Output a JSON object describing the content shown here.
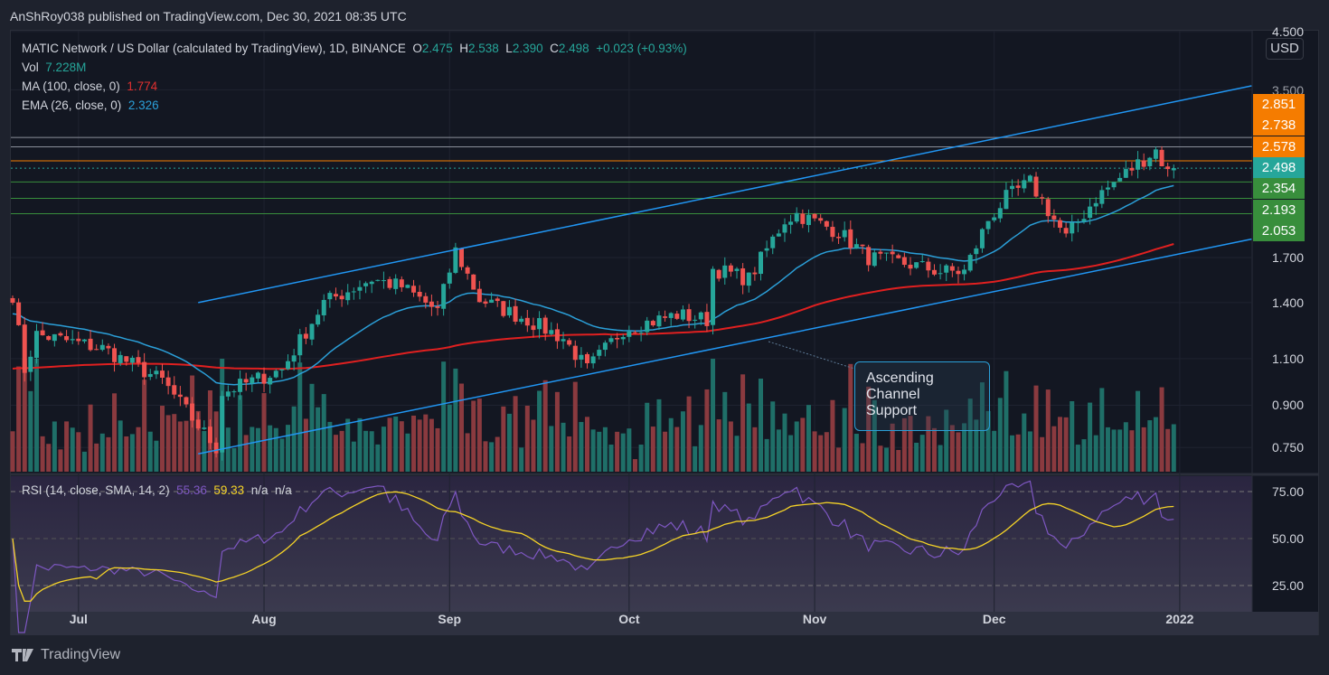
{
  "publisher_line": "AnShRoy038 published on TradingView.com, Dec 30, 2021 08:35 UTC",
  "legend": {
    "symbol": "MATIC Network / US Dollar (calculated by TradingView), 1D, BINANCE",
    "o_label": "O",
    "o": "2.475",
    "h_label": "H",
    "h": "2.538",
    "l_label": "L",
    "l": "2.390",
    "c_label": "C",
    "c": "2.498",
    "change": "+0.023 (+0.93%)",
    "vol_label": "Vol",
    "vol": "7.228M",
    "ma_label": "MA (100, close, 0)",
    "ma": "1.774",
    "ema_label": "EMA (26, close, 0)",
    "ema": "2.326",
    "rsi_label": "RSI (14, close, SMA, 14, 2)",
    "rsi": "55.36",
    "rsi_sma": "59.33",
    "na1": "n/a",
    "na2": "n/a"
  },
  "currency": "USD",
  "brand": "TradingView",
  "annotation": "Ascending\nChannel\nSupport",
  "colors": {
    "up": "#26a69a",
    "down": "#ef5350",
    "ma": "#e02020",
    "ema": "#2b9fd8",
    "channel": "#2196f3",
    "rsi": "#7e57c2",
    "rsi_sma": "#f5d327",
    "orange": "#f57c00",
    "green": "#388e3c"
  },
  "chart_data": {
    "type": "candlestick",
    "scale": "log",
    "price_axis_ticks": [
      "4.500",
      "3.500",
      "1.700",
      "1.400",
      "1.100",
      "0.900",
      "0.750"
    ],
    "price_tick_values": [
      4.5,
      3.5,
      1.7,
      1.4,
      1.1,
      0.9,
      0.75
    ],
    "level_tags": [
      {
        "label": "2.851",
        "value": 2.851,
        "kind": "orange"
      },
      {
        "label": "2.738",
        "value": 2.738,
        "kind": "orange"
      },
      {
        "label": "2.578",
        "value": 2.578,
        "kind": "orange"
      },
      {
        "label": "2.498",
        "value": 2.498,
        "kind": "current"
      },
      {
        "label": "2.354",
        "value": 2.354,
        "kind": "green"
      },
      {
        "label": "2.193",
        "value": 2.193,
        "kind": "green"
      },
      {
        "label": "2.053",
        "value": 2.053,
        "kind": "green"
      }
    ],
    "rsi_ticks": [
      "75.00",
      "50.00",
      "25.00"
    ],
    "rsi_tick_values": [
      75,
      50,
      25
    ],
    "time_labels": [
      {
        "label": "Jul",
        "day": 11
      },
      {
        "label": "Aug",
        "day": 42
      },
      {
        "label": "Sep",
        "day": 73
      },
      {
        "label": "Oct",
        "day": 103
      },
      {
        "label": "Nov",
        "day": 134
      },
      {
        "label": "Dec",
        "day": 164
      },
      {
        "label": "2022",
        "day": 195
      }
    ],
    "first_day": "2021-06-20",
    "last_day": "2021-12-30",
    "close_keypoints": [
      [
        0,
        1.45
      ],
      [
        2,
        1.05
      ],
      [
        4,
        1.22
      ],
      [
        15,
        1.15
      ],
      [
        25,
        1.0
      ],
      [
        30,
        0.85
      ],
      [
        34,
        0.75
      ],
      [
        35,
        0.95
      ],
      [
        45,
        1.05
      ],
      [
        52,
        1.4
      ],
      [
        60,
        1.55
      ],
      [
        65,
        1.5
      ],
      [
        71,
        1.35
      ],
      [
        74,
        1.75
      ],
      [
        78,
        1.42
      ],
      [
        86,
        1.3
      ],
      [
        92,
        1.2
      ],
      [
        96,
        1.05
      ],
      [
        102,
        1.25
      ],
      [
        111,
        1.33
      ],
      [
        116,
        1.3
      ],
      [
        117,
        1.62
      ],
      [
        123,
        1.55
      ],
      [
        129,
        2.0
      ],
      [
        131,
        2.05
      ],
      [
        138,
        1.9
      ],
      [
        143,
        1.7
      ],
      [
        150,
        1.65
      ],
      [
        155,
        1.6
      ],
      [
        159,
        1.6
      ],
      [
        163,
        2.0
      ],
      [
        166,
        2.2
      ],
      [
        170,
        2.35
      ],
      [
        176,
        1.85
      ],
      [
        181,
        2.2
      ],
      [
        188,
        2.55
      ],
      [
        191,
        2.7
      ],
      [
        193,
        2.45
      ],
      [
        194,
        2.498
      ]
    ],
    "channel": {
      "upper": [
        [
          31,
          1.4
        ],
        [
          207,
          3.56
        ]
      ],
      "lower": [
        [
          31,
          0.73
        ],
        [
          207,
          1.84
        ]
      ]
    }
  }
}
